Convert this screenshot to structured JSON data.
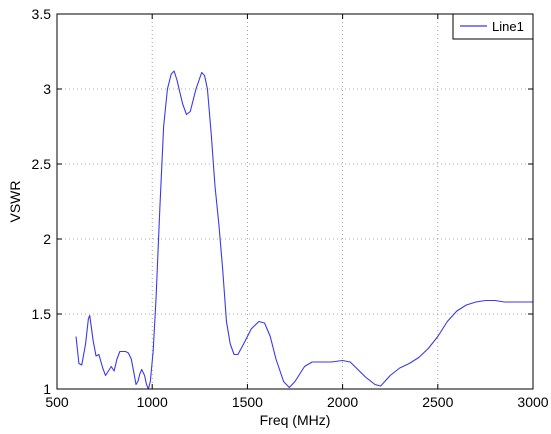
{
  "chart_data": {
    "type": "line",
    "title": "",
    "xlabel": "Freq (MHz)",
    "ylabel": "VSWR",
    "xlim": [
      500,
      3000
    ],
    "ylim": [
      1,
      3.5
    ],
    "xticks": [
      500,
      1000,
      1500,
      2000,
      2500,
      3000
    ],
    "yticks": [
      1,
      1.5,
      2,
      2.5,
      3,
      3.5
    ],
    "xtick_labels": [
      "500",
      "1000",
      "1500",
      "2000",
      "2500",
      "3000"
    ],
    "ytick_labels": [
      "1",
      "1.5",
      "2",
      "2.5",
      "3",
      "3.5"
    ],
    "grid": true,
    "legend_position": "top-right",
    "series": [
      {
        "name": "Line1",
        "color": "#3a3ae8",
        "points": [
          [
            600,
            1.35
          ],
          [
            615,
            1.17
          ],
          [
            630,
            1.16
          ],
          [
            650,
            1.3
          ],
          [
            665,
            1.47
          ],
          [
            672,
            1.49
          ],
          [
            690,
            1.32
          ],
          [
            705,
            1.22
          ],
          [
            720,
            1.23
          ],
          [
            740,
            1.14
          ],
          [
            755,
            1.09
          ],
          [
            770,
            1.12
          ],
          [
            785,
            1.15
          ],
          [
            800,
            1.12
          ],
          [
            815,
            1.2
          ],
          [
            830,
            1.25
          ],
          [
            860,
            1.25
          ],
          [
            875,
            1.24
          ],
          [
            890,
            1.2
          ],
          [
            905,
            1.1
          ],
          [
            915,
            1.03
          ],
          [
            925,
            1.05
          ],
          [
            935,
            1.1
          ],
          [
            945,
            1.13
          ],
          [
            960,
            1.09
          ],
          [
            970,
            1.03
          ],
          [
            980,
            1.0
          ],
          [
            990,
            1.05
          ],
          [
            1005,
            1.25
          ],
          [
            1020,
            1.6
          ],
          [
            1040,
            2.2
          ],
          [
            1060,
            2.75
          ],
          [
            1080,
            3.0
          ],
          [
            1100,
            3.1
          ],
          [
            1115,
            3.12
          ],
          [
            1130,
            3.06
          ],
          [
            1160,
            2.9
          ],
          [
            1180,
            2.83
          ],
          [
            1200,
            2.85
          ],
          [
            1230,
            3.0
          ],
          [
            1260,
            3.11
          ],
          [
            1275,
            3.09
          ],
          [
            1290,
            3.0
          ],
          [
            1310,
            2.7
          ],
          [
            1330,
            2.35
          ],
          [
            1350,
            2.1
          ],
          [
            1370,
            1.8
          ],
          [
            1390,
            1.45
          ],
          [
            1410,
            1.3
          ],
          [
            1430,
            1.23
          ],
          [
            1450,
            1.23
          ],
          [
            1480,
            1.3
          ],
          [
            1520,
            1.4
          ],
          [
            1560,
            1.45
          ],
          [
            1590,
            1.44
          ],
          [
            1620,
            1.35
          ],
          [
            1650,
            1.2
          ],
          [
            1690,
            1.05
          ],
          [
            1720,
            1.01
          ],
          [
            1750,
            1.05
          ],
          [
            1800,
            1.15
          ],
          [
            1840,
            1.18
          ],
          [
            1880,
            1.18
          ],
          [
            1940,
            1.18
          ],
          [
            2000,
            1.19
          ],
          [
            2040,
            1.18
          ],
          [
            2080,
            1.13
          ],
          [
            2120,
            1.08
          ],
          [
            2170,
            1.03
          ],
          [
            2200,
            1.02
          ],
          [
            2250,
            1.09
          ],
          [
            2300,
            1.14
          ],
          [
            2350,
            1.17
          ],
          [
            2400,
            1.21
          ],
          [
            2450,
            1.27
          ],
          [
            2500,
            1.35
          ],
          [
            2550,
            1.45
          ],
          [
            2600,
            1.52
          ],
          [
            2650,
            1.56
          ],
          [
            2700,
            1.58
          ],
          [
            2750,
            1.59
          ],
          [
            2800,
            1.59
          ],
          [
            2850,
            1.58
          ],
          [
            2900,
            1.58
          ],
          [
            2950,
            1.58
          ],
          [
            3000,
            1.58
          ]
        ]
      }
    ]
  }
}
